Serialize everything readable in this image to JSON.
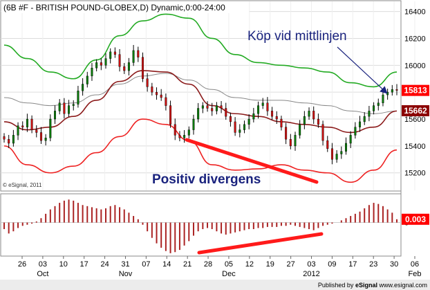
{
  "chart_data": [
    {
      "type": "candlestick",
      "title": "(6B #F - BRITISH POUND-GLOBEX,D) Dynamic,0:00-24:00",
      "watermark": "© eSignal, 2011",
      "x_ticks": [
        "26",
        "03",
        "10",
        "17",
        "24",
        "31",
        "07",
        "14",
        "21",
        "28",
        "05",
        "12",
        "19",
        "27",
        "03",
        "09",
        "17",
        "23",
        "30",
        "06"
      ],
      "month_labels": [
        "Oct",
        "Nov",
        "Dec",
        "2012",
        "Feb"
      ],
      "y_ticks": [
        15200,
        15400,
        15600,
        15800,
        16000,
        16200,
        16400
      ],
      "ylim": [
        15070,
        16470
      ],
      "price_badges": [
        {
          "value": "15813",
          "price": 15813,
          "color": "#ff0000"
        },
        {
          "value": "15662",
          "price": 15662,
          "color": "#8b0000"
        }
      ],
      "candles_close": [
        15450,
        15420,
        15480,
        15550,
        15540,
        15600,
        15520,
        15500,
        15440,
        15460,
        15600,
        15660,
        15720,
        15640,
        15700,
        15710,
        15810,
        15860,
        15920,
        15980,
        16020,
        16000,
        16050,
        16100,
        16080,
        15990,
        15960,
        16020,
        16110,
        16060,
        15900,
        15840,
        15800,
        15780,
        15760,
        15700,
        15560,
        15480,
        15460,
        15480,
        15520,
        15600,
        15680,
        15700,
        15680,
        15660,
        15700,
        15680,
        15620,
        15580,
        15500,
        15520,
        15560,
        15600,
        15640,
        15700,
        15720,
        15660,
        15620,
        15600,
        15540,
        15450,
        15400,
        15480,
        15560,
        15620,
        15660,
        15600,
        15560,
        15440,
        15380,
        15300,
        15340,
        15360,
        15420,
        15480,
        15540,
        15580,
        15620,
        15660,
        15700,
        15720,
        15780,
        15800,
        15820,
        15813
      ],
      "series": [
        {
          "name": "",
          "color": "#22aa22",
          "x": [
            0,
            5,
            10,
            15,
            20,
            25,
            30,
            35,
            40,
            45,
            50,
            55,
            60,
            65,
            70,
            75,
            80,
            85
          ],
          "values": [
            16150,
            16050,
            15950,
            15900,
            16040,
            16220,
            16330,
            16380,
            16350,
            16200,
            16080,
            16020,
            16000,
            15980,
            15950,
            15870,
            15840,
            15950
          ]
        },
        {
          "name": "",
          "color": "#888888",
          "x": [
            0,
            5,
            10,
            15,
            20,
            25,
            30,
            35,
            40,
            45,
            50,
            55,
            60,
            65,
            70,
            75,
            80,
            85
          ],
          "values": [
            15760,
            15720,
            15700,
            15720,
            15780,
            15860,
            15920,
            15940,
            15890,
            15820,
            15760,
            15740,
            15740,
            15720,
            15700,
            15660,
            15640,
            15660
          ]
        },
        {
          "name": "",
          "color": "#8b1a1a",
          "x": [
            0,
            5,
            10,
            15,
            20,
            25,
            30,
            35,
            40,
            45,
            50,
            55,
            60,
            65,
            70,
            75,
            80,
            85
          ],
          "values": [
            15580,
            15520,
            15540,
            15620,
            15740,
            15880,
            15960,
            15950,
            15860,
            15700,
            15640,
            15620,
            15580,
            15560,
            15540,
            15500,
            15540,
            15660
          ]
        },
        {
          "name": "",
          "color": "#ee2222",
          "x": [
            0,
            5,
            10,
            15,
            20,
            25,
            30,
            35,
            40,
            45,
            50,
            55,
            60,
            65,
            70,
            75,
            80,
            85
          ],
          "values": [
            15400,
            15260,
            15200,
            15250,
            15350,
            15470,
            15600,
            15560,
            15440,
            15260,
            15220,
            15230,
            15260,
            15220,
            15200,
            15130,
            15220,
            15370
          ]
        }
      ],
      "annotations": [
        {
          "text": "Köp vid mittlinjen",
          "color": "#1a237e"
        },
        {
          "text": "Positiv divergens",
          "color": "#1a237e"
        }
      ]
    },
    {
      "type": "bar",
      "title": "",
      "ylim": [
        -0.03,
        0.025
      ],
      "y_ticks": [
        0
      ],
      "zero_label": "0",
      "badge": {
        "value": "0.003",
        "color": "#ff0000"
      },
      "bar_color": "#aa2222",
      "values": [
        -0.006,
        -0.01,
        -0.008,
        -0.005,
        -0.003,
        -0.002,
        -0.001,
        0.001,
        0.004,
        0.008,
        0.012,
        0.015,
        0.018,
        0.02,
        0.021,
        0.02,
        0.018,
        0.016,
        0.015,
        0.014,
        0.013,
        0.012,
        0.013,
        0.015,
        0.016,
        0.014,
        0.012,
        0.009,
        0.006,
        0.003,
        -0.002,
        -0.008,
        -0.014,
        -0.019,
        -0.023,
        -0.026,
        -0.028,
        -0.027,
        -0.025,
        -0.021,
        -0.017,
        -0.012,
        -0.008,
        -0.006,
        -0.005,
        -0.006,
        -0.008,
        -0.01,
        -0.011,
        -0.01,
        -0.009,
        -0.008,
        -0.007,
        -0.006,
        -0.006,
        -0.005,
        -0.005,
        -0.004,
        -0.004,
        -0.004,
        -0.003,
        -0.003,
        -0.002,
        -0.003,
        -0.004,
        -0.005,
        -0.006,
        -0.007,
        -0.005,
        -0.003,
        -0.002,
        -0.001,
        0.0,
        0.002,
        0.004,
        0.006,
        0.008,
        0.01,
        0.013,
        0.016,
        0.018,
        0.017,
        0.015,
        0.012,
        0.009,
        0.003
      ]
    }
  ],
  "footer": {
    "published_by": "Published by",
    "brand": "eSignal",
    "site": "www.esignal.com"
  }
}
